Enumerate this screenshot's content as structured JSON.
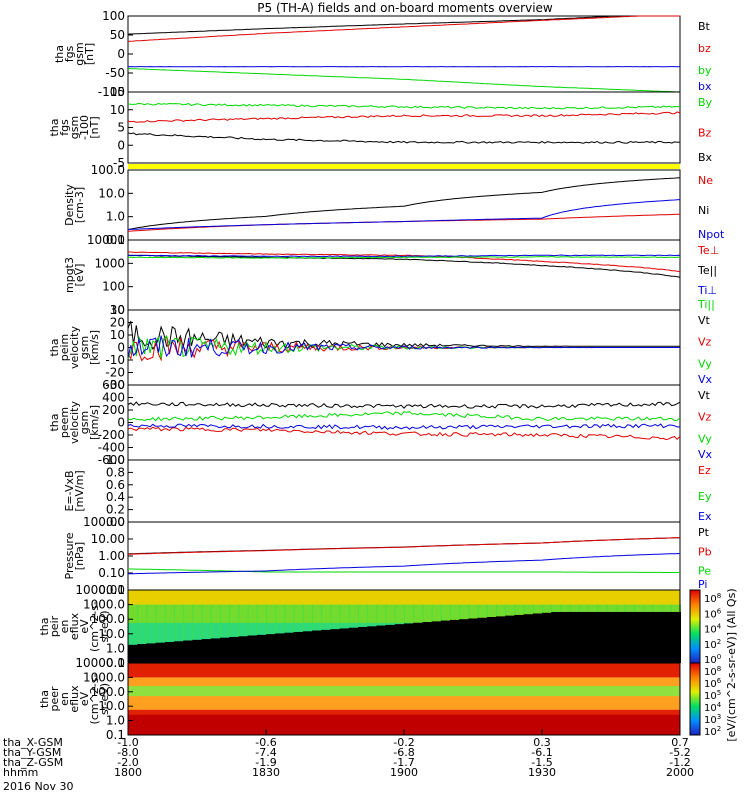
{
  "title": "P5 (TH-A) fields and on-board moments overview",
  "colors": {
    "black": "#000000",
    "red": "#e00000",
    "green": "#00d800",
    "blue": "#0000e0",
    "yellow": "#ffff00"
  },
  "panels": [
    {
      "ylabel": [
        "tha",
        "fgs",
        "gsm",
        "[nT]"
      ],
      "ticks": [
        "100",
        "50",
        "0",
        "-50",
        "-100"
      ],
      "legend": [
        {
          "text": "Bt",
          "color": "#000000"
        },
        {
          "text": "bz",
          "color": "#e00000"
        },
        {
          "text": "by",
          "color": "#00d800"
        },
        {
          "text": "bx",
          "color": "#0000e0"
        }
      ]
    },
    {
      "ylabel": [
        "tha",
        "fgs",
        "gsm",
        "-100",
        "[nT]"
      ],
      "ticks": [
        "15",
        "10",
        "5",
        "0",
        "-5"
      ],
      "legend": [
        {
          "text": "By",
          "color": "#00d800"
        },
        {
          "text": "Bz",
          "color": "#e00000"
        },
        {
          "text": "Bx",
          "color": "#000000"
        }
      ]
    },
    {
      "ylabel": [
        "Density",
        "[cm-3]"
      ],
      "ticks": [
        "100.0",
        "10.0",
        "1.0",
        "0.1"
      ],
      "legend": [
        {
          "text": "Ne",
          "color": "#e00000"
        },
        {
          "text": "Ni",
          "color": "#000000"
        },
        {
          "text": "Npot",
          "color": "#0000e0"
        }
      ]
    },
    {
      "ylabel": [
        "mpgt3",
        "[eV]"
      ],
      "ticks": [
        "10000",
        "1000",
        "100",
        "10"
      ],
      "legend": [
        {
          "text": "Te⊥",
          "color": "#e00000"
        },
        {
          "text": "Te||",
          "color": "#000000"
        },
        {
          "text": "Ti⊥",
          "color": "#0000e0"
        },
        {
          "text": "Ti||",
          "color": "#00d800"
        }
      ]
    },
    {
      "ylabel": [
        "tha",
        "peim",
        "velocity",
        "gsm",
        "[km/s]"
      ],
      "ticks": [
        "30",
        "20",
        "10",
        "0",
        "-10",
        "-20",
        "-30"
      ],
      "legend": [
        {
          "text": "Vt",
          "color": "#000000"
        },
        {
          "text": "Vz",
          "color": "#e00000"
        },
        {
          "text": "Vy",
          "color": "#00d800"
        },
        {
          "text": "Vx",
          "color": "#0000e0"
        }
      ]
    },
    {
      "ylabel": [
        "tha",
        "peem",
        "velocity",
        "gsm",
        "[km/s]"
      ],
      "ticks": [
        "600",
        "400",
        "200",
        "0",
        "-200",
        "-400",
        "-600"
      ],
      "legend": [
        {
          "text": "Vt",
          "color": "#000000"
        },
        {
          "text": "Vz",
          "color": "#e00000"
        },
        {
          "text": "Vy",
          "color": "#00d800"
        },
        {
          "text": "Vx",
          "color": "#0000e0"
        }
      ]
    },
    {
      "ylabel": [
        "E=-VxB",
        "[mV/m]"
      ],
      "ticks": [
        "1.0",
        "0.8",
        "0.6",
        "0.4",
        "0.2",
        "0.0"
      ],
      "legend": [
        {
          "text": "Ez",
          "color": "#e00000"
        },
        {
          "text": "Ey",
          "color": "#00d800"
        },
        {
          "text": "Ex",
          "color": "#0000e0"
        }
      ]
    },
    {
      "ylabel": [
        "Pressure",
        "[nPa]"
      ],
      "ticks": [
        "100.00",
        "10.00",
        "1.00",
        "0.10",
        "0.01"
      ],
      "legend": [
        {
          "text": "Pt",
          "color": "#000000"
        },
        {
          "text": "Pb",
          "color": "#e00000"
        },
        {
          "text": "Pe",
          "color": "#00d800"
        },
        {
          "text": "Pi",
          "color": "#0000e0"
        }
      ]
    },
    {
      "ylabel": [
        "tha",
        "peir",
        "en",
        "eflux",
        "eV",
        "(cm^2-s-",
        "sr-eV)"
      ],
      "ticks": [
        "10000.0",
        "1000.0",
        "100.0",
        "10.0",
        "1.0",
        "0.1"
      ],
      "legend": []
    },
    {
      "ylabel": [
        "tha",
        "peer",
        "en",
        "eflux",
        "eV",
        "(cm^2-s-",
        "sr-eV)"
      ],
      "ticks": [
        "10000.0",
        "1000.0",
        "100.0",
        "10.0",
        "1.0",
        "0.1"
      ],
      "legend": []
    }
  ],
  "colorbar_label": "[eV/(cm^2-s-sr-eV)] (All Qs)",
  "colorbar_ticks": [
    "10^8",
    "10^6",
    "10^4",
    "10^2",
    "10^0"
  ],
  "colorbar_ticks2": [
    "10^8",
    "10^6",
    "10^5",
    "10^4",
    "10^3",
    "10^2"
  ],
  "bottom": {
    "rows": [
      {
        "label": "tha_X-GSM",
        "values": [
          "-1.0",
          "-0.6",
          "-0.2",
          "0.3",
          "0.7"
        ]
      },
      {
        "label": "tha_Y-GSM",
        "values": [
          "-8.0",
          "-7.4",
          "-6.8",
          "-6.1",
          "-5.2"
        ]
      },
      {
        "label": "tha_Z-GSM",
        "values": [
          "-2.0",
          "-1.9",
          "-1.7",
          "-1.5",
          "-1.2"
        ]
      },
      {
        "label": "hhmm",
        "values": [
          "1800",
          "1830",
          "1900",
          "1930",
          "2000"
        ]
      }
    ],
    "date": "2016 Nov 30"
  },
  "chart_data": {
    "type": "line",
    "title": "P5 (TH-A) fields and on-board moments overview",
    "x": [
      "1800",
      "1830",
      "1900",
      "1930",
      "2000"
    ],
    "xlabel": "hhmm",
    "date": "2016 Nov 30",
    "series": [
      {
        "panel": 0,
        "name": "Bt",
        "values": [
          60,
          75,
          88,
          100,
          118
        ]
      },
      {
        "panel": 0,
        "name": "bz",
        "values": [
          40,
          62,
          80,
          98,
          115
        ]
      },
      {
        "panel": 0,
        "name": "by",
        "values": [
          -35,
          -50,
          -65,
          -85,
          -100
        ]
      },
      {
        "panel": 0,
        "name": "bx",
        "values": [
          -30,
          -30,
          -30,
          -30,
          -30
        ]
      },
      {
        "panel": 1,
        "name": "By",
        "values": [
          12,
          11.5,
          11,
          10.5,
          11
        ]
      },
      {
        "panel": 1,
        "name": "Bz",
        "values": [
          6,
          7,
          8,
          8,
          9
        ]
      },
      {
        "panel": 1,
        "name": "Bx",
        "values": [
          2,
          0,
          -1,
          -1,
          -1
        ]
      },
      {
        "panel": 2,
        "name": "Ne",
        "values": [
          0.25,
          0.5,
          0.7,
          0.9,
          1.5
        ]
      },
      {
        "panel": 2,
        "name": "Ni",
        "values": [
          0.3,
          1.2,
          3.5,
          15,
          70
        ]
      },
      {
        "panel": 2,
        "name": "Npot",
        "values": [
          0.3,
          0.5,
          0.7,
          1.0,
          7
        ]
      },
      {
        "panel": 3,
        "name": "Te⊥",
        "values": [
          3000,
          2500,
          2200,
          1200,
          450
        ]
      },
      {
        "panel": 3,
        "name": "Te||",
        "values": [
          2200,
          1800,
          1500,
          800,
          250
        ]
      },
      {
        "panel": 3,
        "name": "Ti⊥",
        "values": [
          2200,
          2000,
          2000,
          2200,
          2200
        ]
      },
      {
        "panel": 3,
        "name": "Ti||",
        "values": [
          1800,
          1700,
          1800,
          1900,
          1800
        ]
      },
      {
        "panel": 4,
        "name": "Vt",
        "values": [
          10,
          4,
          2,
          1,
          1
        ]
      },
      {
        "panel": 4,
        "name": "Vz",
        "values": [
          0,
          0,
          0,
          0,
          0
        ]
      },
      {
        "panel": 4,
        "name": "Vy",
        "values": [
          0,
          0,
          0,
          0,
          0
        ]
      },
      {
        "panel": 4,
        "name": "Vx",
        "values": [
          0,
          0,
          0,
          0,
          0
        ]
      },
      {
        "panel": 5,
        "name": "Vt",
        "values": [
          300,
          280,
          260,
          260,
          300
        ]
      },
      {
        "panel": 5,
        "name": "Vz",
        "values": [
          -100,
          -120,
          -180,
          -200,
          -250
        ]
      },
      {
        "panel": 5,
        "name": "Vy",
        "values": [
          50,
          80,
          150,
          60,
          60
        ]
      },
      {
        "panel": 5,
        "name": "Vx",
        "values": [
          -50,
          -60,
          -80,
          -60,
          -50
        ]
      },
      {
        "panel": 7,
        "name": "Pt",
        "values": [
          1.7,
          2.8,
          4.5,
          8,
          17
        ]
      },
      {
        "panel": 7,
        "name": "Pb",
        "values": [
          1.6,
          2.7,
          4.4,
          8,
          17
        ]
      },
      {
        "panel": 7,
        "name": "Pe",
        "values": [
          0.2,
          0.13,
          0.13,
          0.13,
          0.12
        ]
      },
      {
        "panel": 7,
        "name": "Pi",
        "values": [
          0.1,
          0.15,
          0.3,
          0.7,
          1.8
        ]
      }
    ]
  }
}
